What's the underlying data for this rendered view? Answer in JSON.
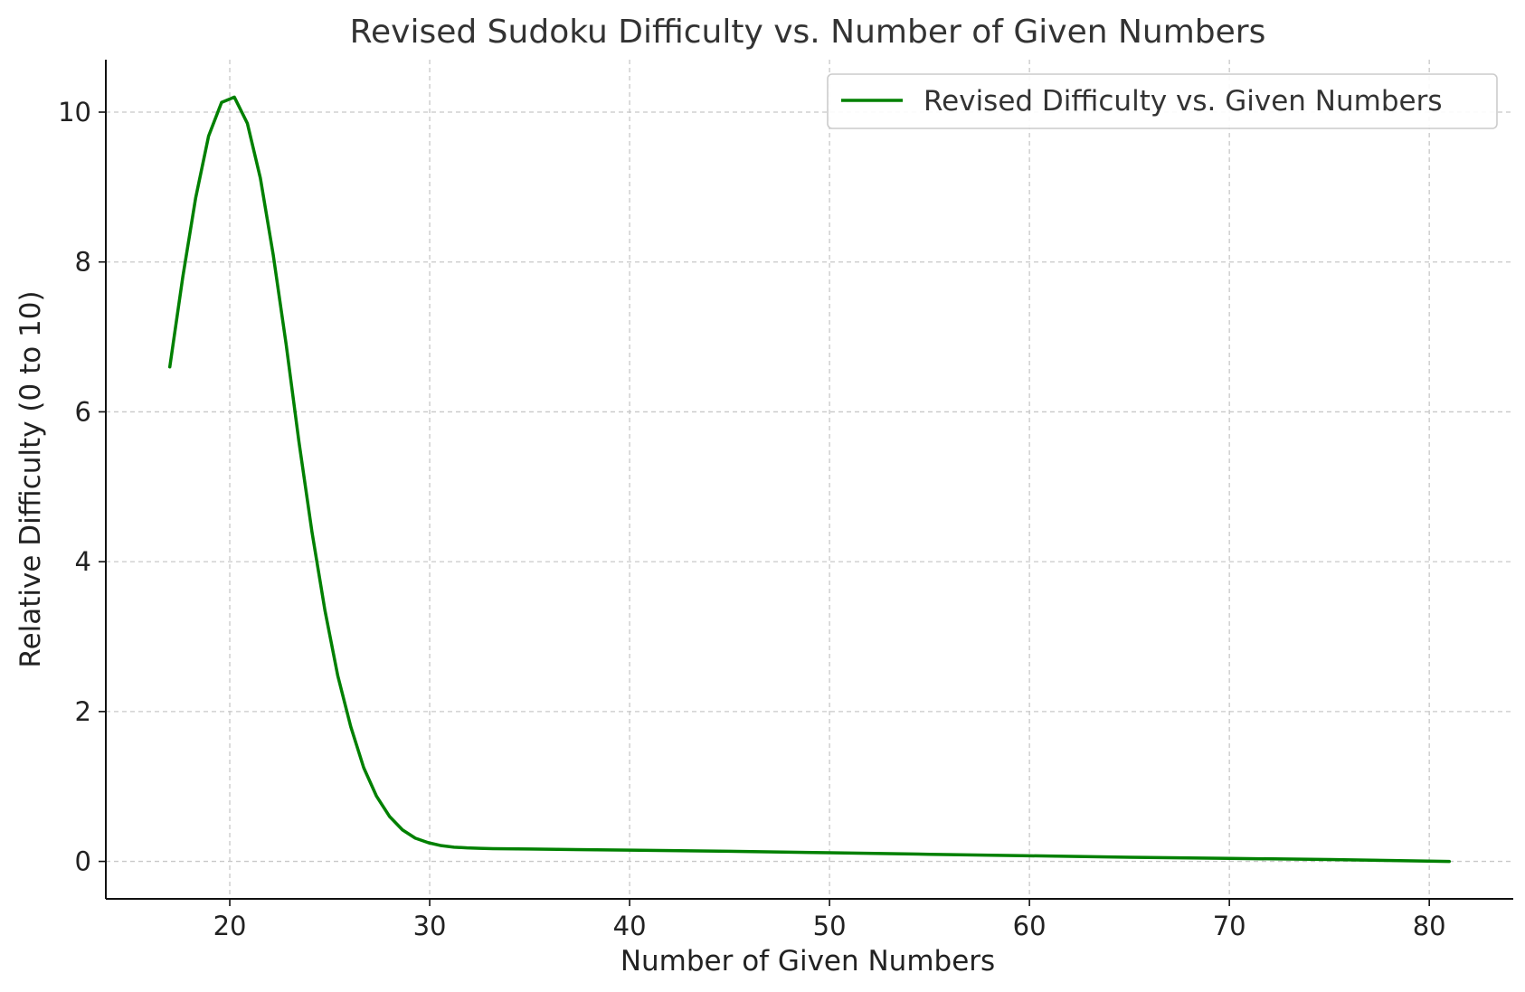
{
  "chart_data": {
    "type": "line",
    "title": "Revised Sudoku Difficulty vs. Number of Given Numbers",
    "xlabel": "Number of Given Numbers",
    "ylabel": "Relative Difficulty (0 to 10)",
    "xlim": [
      13.8,
      84.2
    ],
    "ylim": [
      -0.5,
      10.7
    ],
    "xticks": [
      20,
      30,
      40,
      50,
      60,
      70,
      80
    ],
    "yticks": [
      0,
      2,
      4,
      6,
      8,
      10
    ],
    "grid": true,
    "legend_position": "top-right",
    "series": [
      {
        "name": "Revised Difficulty vs. Given Numbers",
        "color": "#008000",
        "x": [
          17.0,
          17.65,
          18.29,
          18.94,
          19.59,
          20.23,
          20.88,
          21.53,
          22.17,
          22.82,
          23.46,
          24.11,
          24.76,
          25.4,
          26.05,
          26.7,
          27.34,
          27.99,
          28.64,
          29.28,
          29.93,
          30.58,
          31.22,
          31.87,
          32.52,
          33.16,
          35.0,
          40.0,
          45.0,
          50.0,
          55.0,
          60.0,
          65.0,
          70.0,
          75.0,
          81.0
        ],
        "y": [
          6.6,
          7.8,
          8.85,
          9.68,
          10.13,
          10.2,
          9.85,
          9.12,
          8.1,
          6.9,
          5.6,
          4.4,
          3.35,
          2.48,
          1.8,
          1.25,
          0.87,
          0.6,
          0.42,
          0.31,
          0.25,
          0.21,
          0.19,
          0.18,
          0.175,
          0.17,
          0.165,
          0.15,
          0.135,
          0.115,
          0.095,
          0.075,
          0.055,
          0.04,
          0.025,
          0.0
        ]
      }
    ]
  }
}
